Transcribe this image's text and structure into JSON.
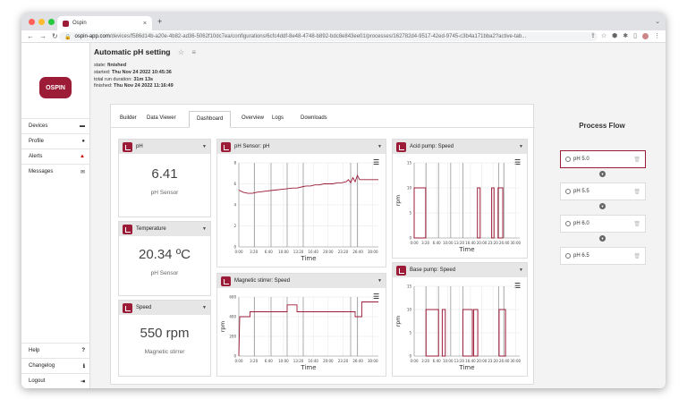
{
  "browser": {
    "tab_title": "Ospin",
    "tab_close": "×",
    "new_tab": "+",
    "url_host": "ospin-app.com",
    "url_path": "/devices/f586d14b-a20e-4b82-ad36-5062f10dc7ea/configurations/6cfc4ddf-8e48-4748-b892-bdc8e843ee01/processes/162782d4-9517-42ed-9745-c3b4a171bba2?active-tab..."
  },
  "sidebar": {
    "logo": "OSPIN",
    "top_items": [
      {
        "label": "Devices",
        "icon": "hdd-icon",
        "glyph": "▬"
      },
      {
        "label": "Profile",
        "icon": "user-icon",
        "glyph": "●"
      },
      {
        "label": "Alerts",
        "icon": "bell-icon",
        "glyph": "▲"
      },
      {
        "label": "Messages",
        "icon": "envelope-icon",
        "glyph": "✉"
      }
    ],
    "bottom_items": [
      {
        "label": "Help",
        "icon": "question-icon",
        "glyph": "?"
      },
      {
        "label": "Changelog",
        "icon": "info-icon",
        "glyph": "ℹ"
      },
      {
        "label": "Logout",
        "icon": "logout-icon",
        "glyph": "⇥"
      }
    ]
  },
  "process": {
    "title": "Automatic pH setting",
    "star": "☆",
    "menu": "≡",
    "state_label": "state:",
    "state": "finished",
    "started_label": "started:",
    "started": "Thu Nov 24 2022 10:45:36",
    "duration_label": "total run duration:",
    "duration": "31m 13s",
    "finished_label": "finished:",
    "finished": "Thu Nov 24 2022 11:16:49"
  },
  "tabs": [
    "Builder",
    "Data Viewer",
    "Dashboard",
    "Overview",
    "Logs",
    "Downloads"
  ],
  "active_tab": "Dashboard",
  "accent": "#9c1b37",
  "value_widgets": [
    {
      "title": "pH",
      "value": "6.41",
      "subtitle": "pH Sensor"
    },
    {
      "title": "Temperature",
      "value": "20.34 ºC",
      "subtitle": "pH Sensor"
    },
    {
      "title": "Speed",
      "value": "550 rpm",
      "subtitle": "Magnetic stirrer"
    }
  ],
  "chart_data": [
    {
      "type": "line",
      "title": "pH Sensor: pH",
      "xlabel": "Time",
      "ylabel": "",
      "x_ticks": [
        "0:00",
        "3:20",
        "6:40",
        "10:00",
        "13:20",
        "16:40",
        "20:00",
        "23:20",
        "26:40",
        "30:00"
      ],
      "y_ticks": [
        0,
        2,
        4,
        6,
        8
      ],
      "xlim": [
        0,
        31.2
      ],
      "ylim": [
        0,
        8
      ],
      "vlines": [
        3.5,
        7.2,
        10.8,
        14.4,
        25.0,
        26.5
      ],
      "series": [
        {
          "x": [
            0,
            1,
            2,
            3,
            4,
            6,
            8,
            10,
            12,
            13,
            14,
            15,
            16,
            17,
            18,
            19,
            20,
            21,
            22,
            23,
            24,
            24.5,
            25,
            25.5,
            26,
            26.5,
            27,
            28,
            30,
            31.2
          ],
          "y": [
            5.4,
            5.2,
            5.1,
            5.1,
            5.2,
            5.3,
            5.4,
            5.5,
            5.6,
            5.6,
            5.7,
            5.8,
            5.8,
            5.9,
            5.9,
            6.0,
            6.0,
            6.0,
            6.1,
            6.1,
            6.2,
            6.4,
            6.1,
            6.6,
            6.2,
            6.8,
            6.4,
            6.4,
            6.4,
            6.4
          ]
        }
      ]
    },
    {
      "type": "bar",
      "title": "Acid pump: Speed",
      "xlabel": "Time",
      "ylabel": "rpm",
      "x_ticks": [
        "0:00",
        "3:20",
        "6:40",
        "10:00",
        "13:20",
        "16:40",
        "20:00",
        "23:20",
        "26:40",
        "30:00"
      ],
      "y_ticks": [
        0,
        5,
        10,
        15
      ],
      "xlim": [
        0,
        31.2
      ],
      "ylim": [
        0,
        15
      ],
      "vlines": [
        3.5,
        7.2,
        10.8,
        14.4,
        25.0,
        26.5
      ],
      "bars": [
        {
          "start": 0,
          "end": 3.4,
          "value": 10
        },
        {
          "start": 18.7,
          "end": 19.5,
          "value": 10
        },
        {
          "start": 22.9,
          "end": 23.6,
          "value": 10
        },
        {
          "start": 24.8,
          "end": 26.2,
          "value": 10
        }
      ]
    },
    {
      "type": "line",
      "title": "Magnetic stirrer: Speed",
      "xlabel": "Time",
      "ylabel": "rpm",
      "x_ticks": [
        "0:00",
        "3:20",
        "6:40",
        "10:00",
        "13:20",
        "16:40",
        "20:00",
        "23:20",
        "26:40",
        "30:00"
      ],
      "y_ticks": [
        0,
        200,
        400,
        600
      ],
      "xlim": [
        0,
        31.2
      ],
      "ylim": [
        0,
        600
      ],
      "vlines": [
        3.5,
        7.2,
        10.8,
        14.4,
        25.0,
        26.5
      ],
      "series": [
        {
          "x": [
            0,
            0.2,
            2.5,
            2.5,
            10.8,
            10.8,
            13.0,
            13.0,
            26.0,
            26.0,
            27.5,
            27.5,
            31.2
          ],
          "y": [
            0,
            400,
            400,
            450,
            450,
            520,
            520,
            450,
            450,
            400,
            400,
            550,
            550
          ],
          "step": true
        }
      ]
    },
    {
      "type": "bar",
      "title": "Base pump: Speed",
      "xlabel": "Time",
      "ylabel": "rpm",
      "x_ticks": [
        "0:00",
        "3:20",
        "6:40",
        "10:00",
        "13:20",
        "16:40",
        "20:00",
        "23:20",
        "26:40",
        "30:00"
      ],
      "y_ticks": [
        0,
        5,
        10,
        15
      ],
      "xlim": [
        0,
        31.2
      ],
      "ylim": [
        0,
        15
      ],
      "vlines": [
        3.5,
        7.2,
        10.8,
        14.4,
        25.0,
        26.5
      ],
      "bars": [
        {
          "start": 3.5,
          "end": 7.2,
          "value": 10
        },
        {
          "start": 8.3,
          "end": 9.2,
          "value": 10
        },
        {
          "start": 14.4,
          "end": 17.2,
          "value": 10
        },
        {
          "start": 17.6,
          "end": 18.8,
          "value": 10
        },
        {
          "start": 25.1,
          "end": 27.0,
          "value": 10
        }
      ]
    }
  ],
  "process_flow": {
    "title": "Process Flow",
    "phases": [
      "pH 5.0",
      "pH 5.5",
      "pH 6.0",
      "pH 6.5"
    ],
    "active_index": 0
  }
}
